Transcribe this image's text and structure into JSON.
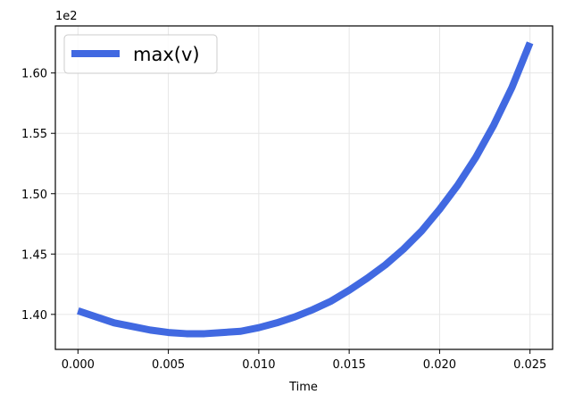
{
  "chart_data": {
    "type": "line",
    "xlabel": "Time",
    "ylabel": "",
    "offset_label": "1e2",
    "xlim": [
      -0.00125,
      0.02625
    ],
    "ylim": [
      137.1,
      163.9
    ],
    "xticks": [
      0.0,
      0.005,
      0.01,
      0.015,
      0.02,
      0.025
    ],
    "xtick_labels": [
      "0.000",
      "0.005",
      "0.010",
      "0.015",
      "0.020",
      "0.025"
    ],
    "yticks": [
      140,
      145,
      150,
      155,
      160
    ],
    "ytick_labels": [
      "1.40",
      "1.45",
      "1.50",
      "1.55",
      "1.60"
    ],
    "grid": true,
    "legend_position": "top-left",
    "series": [
      {
        "name": "max(v)",
        "color": "#4169e1",
        "x": [
          0.0,
          0.001,
          0.002,
          0.003,
          0.004,
          0.005,
          0.006,
          0.007,
          0.008,
          0.009,
          0.01,
          0.011,
          0.012,
          0.013,
          0.014,
          0.015,
          0.016,
          0.017,
          0.018,
          0.019,
          0.02,
          0.021,
          0.022,
          0.023,
          0.024,
          0.025
        ],
        "y": [
          140.3,
          139.8,
          139.3,
          139.0,
          138.7,
          138.5,
          138.4,
          138.4,
          138.5,
          138.6,
          138.9,
          139.3,
          139.8,
          140.4,
          141.1,
          142.0,
          143.0,
          144.1,
          145.4,
          146.9,
          148.7,
          150.7,
          153.0,
          155.7,
          158.8,
          162.5
        ]
      }
    ]
  }
}
